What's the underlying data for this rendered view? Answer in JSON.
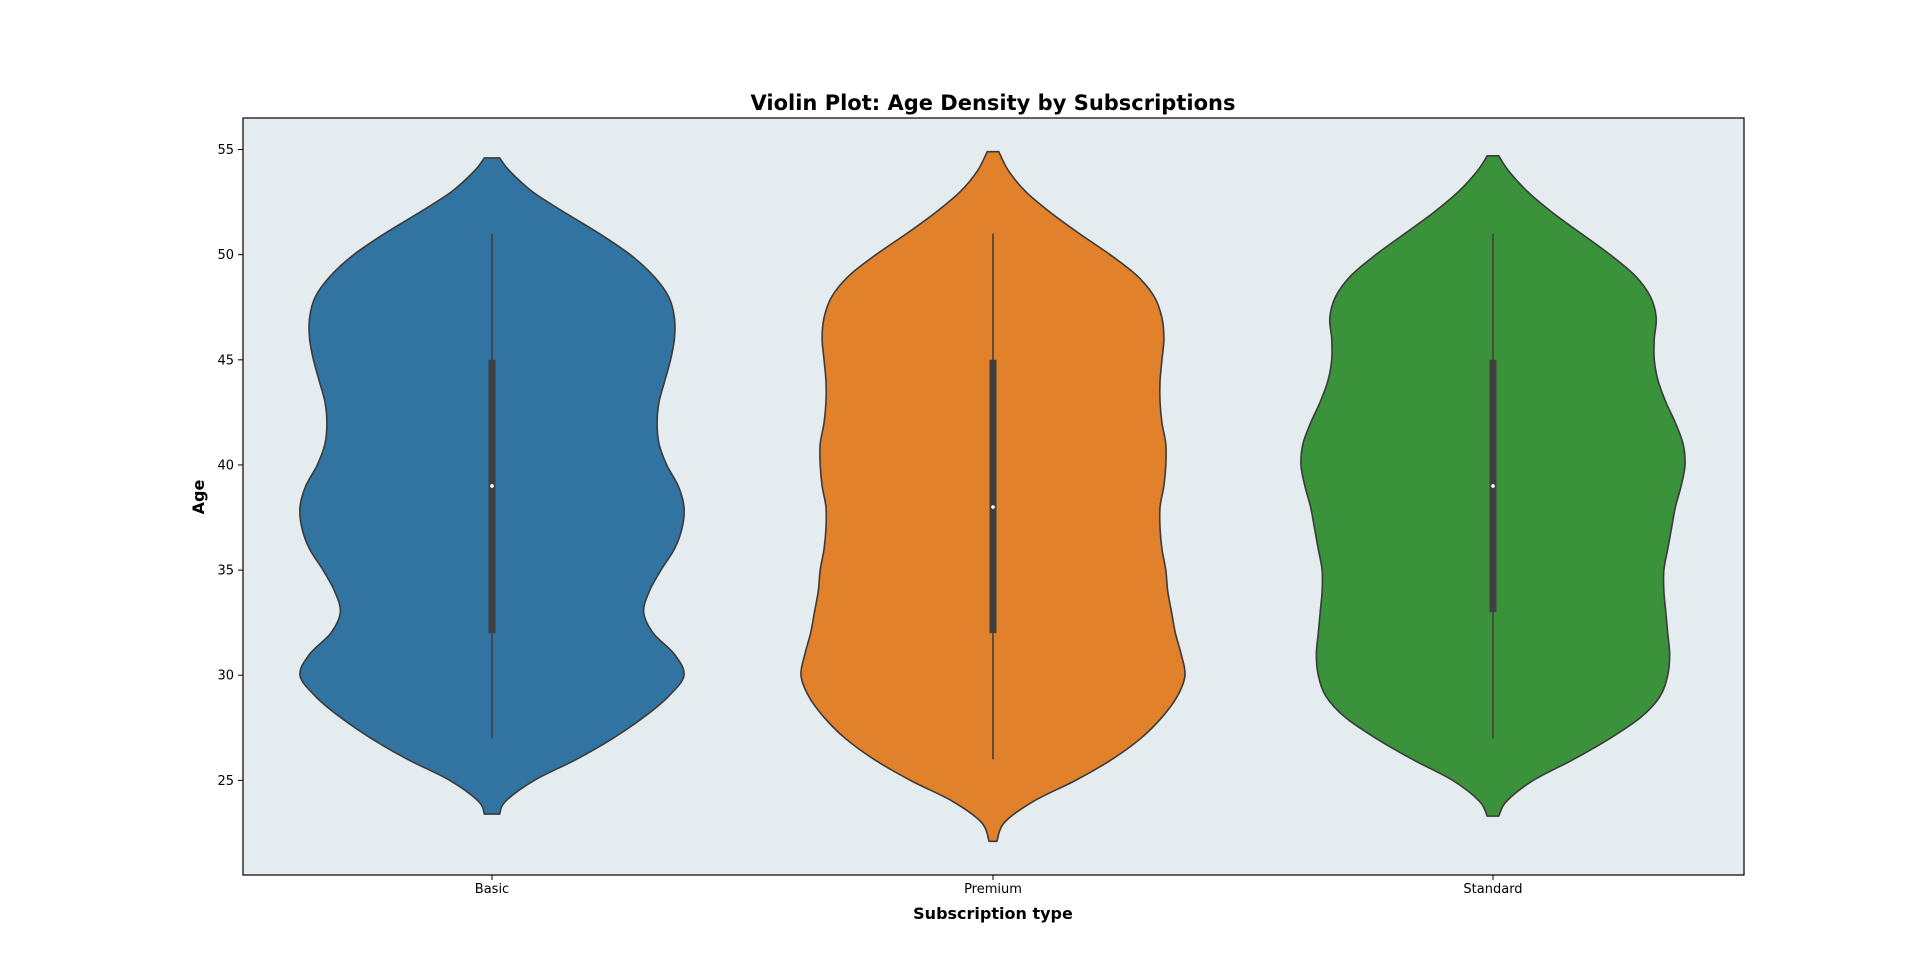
{
  "chart_data": {
    "type": "violin",
    "title": "Violin Plot: Age Density by Subscriptions",
    "xlabel": "Subscription type",
    "ylabel": "Age",
    "categories": [
      "Basic",
      "Premium",
      "Standard"
    ],
    "ylim": [
      20.5,
      56.5
    ],
    "yticks": [
      25,
      30,
      35,
      40,
      45,
      50,
      55
    ],
    "background": "#e5ecf0",
    "grid": false,
    "legend": "none",
    "series": [
      {
        "category": "Basic",
        "color": "#3274a1",
        "min": 27,
        "q1": 32,
        "median": 39,
        "q3": 45,
        "max": 51,
        "extent": [
          23.4,
          54.6
        ],
        "density": [
          [
            23.4,
            0.04
          ],
          [
            24.0,
            0.07
          ],
          [
            25.0,
            0.22
          ],
          [
            26.0,
            0.44
          ],
          [
            27.0,
            0.63
          ],
          [
            28.0,
            0.79
          ],
          [
            29.0,
            0.92
          ],
          [
            30.0,
            1.0
          ],
          [
            31.0,
            0.95
          ],
          [
            32.0,
            0.84
          ],
          [
            33.0,
            0.79
          ],
          [
            34.0,
            0.82
          ],
          [
            35.0,
            0.88
          ],
          [
            36.0,
            0.95
          ],
          [
            37.0,
            0.99
          ],
          [
            38.0,
            1.0
          ],
          [
            39.0,
            0.97
          ],
          [
            40.0,
            0.91
          ],
          [
            41.0,
            0.87
          ],
          [
            42.0,
            0.86
          ],
          [
            43.0,
            0.87
          ],
          [
            44.0,
            0.9
          ],
          [
            45.0,
            0.93
          ],
          [
            46.0,
            0.95
          ],
          [
            47.0,
            0.95
          ],
          [
            48.0,
            0.92
          ],
          [
            49.0,
            0.84
          ],
          [
            50.0,
            0.72
          ],
          [
            51.0,
            0.56
          ],
          [
            52.0,
            0.38
          ],
          [
            53.0,
            0.21
          ],
          [
            54.0,
            0.09
          ],
          [
            54.6,
            0.04
          ]
        ]
      },
      {
        "category": "Premium",
        "color": "#e1812c",
        "min": 26,
        "q1": 32,
        "median": 38,
        "q3": 45,
        "max": 51,
        "extent": [
          22.1,
          54.9
        ],
        "density": [
          [
            22.1,
            0.02
          ],
          [
            23.0,
            0.06
          ],
          [
            24.0,
            0.21
          ],
          [
            25.0,
            0.43
          ],
          [
            26.0,
            0.62
          ],
          [
            27.0,
            0.77
          ],
          [
            28.0,
            0.88
          ],
          [
            29.0,
            0.96
          ],
          [
            30.0,
            1.0
          ],
          [
            31.0,
            0.98
          ],
          [
            32.0,
            0.95
          ],
          [
            33.0,
            0.93
          ],
          [
            34.0,
            0.91
          ],
          [
            35.0,
            0.9
          ],
          [
            36.0,
            0.88
          ],
          [
            37.0,
            0.87
          ],
          [
            38.0,
            0.87
          ],
          [
            39.0,
            0.89
          ],
          [
            40.0,
            0.9
          ],
          [
            41.0,
            0.9
          ],
          [
            42.0,
            0.88
          ],
          [
            43.0,
            0.87
          ],
          [
            44.0,
            0.87
          ],
          [
            45.0,
            0.88
          ],
          [
            46.0,
            0.89
          ],
          [
            47.0,
            0.88
          ],
          [
            48.0,
            0.84
          ],
          [
            49.0,
            0.75
          ],
          [
            50.0,
            0.61
          ],
          [
            51.0,
            0.45
          ],
          [
            52.0,
            0.3
          ],
          [
            53.0,
            0.17
          ],
          [
            54.0,
            0.08
          ],
          [
            54.9,
            0.03
          ]
        ]
      },
      {
        "category": "Standard",
        "color": "#3a923a",
        "min": 27,
        "q1": 33,
        "median": 39,
        "q3": 45,
        "max": 51,
        "extent": [
          23.3,
          54.7
        ],
        "density": [
          [
            23.3,
            0.03
          ],
          [
            24.0,
            0.07
          ],
          [
            25.0,
            0.21
          ],
          [
            26.0,
            0.42
          ],
          [
            27.0,
            0.61
          ],
          [
            28.0,
            0.77
          ],
          [
            29.0,
            0.87
          ],
          [
            30.0,
            0.91
          ],
          [
            31.0,
            0.92
          ],
          [
            32.0,
            0.91
          ],
          [
            33.0,
            0.9
          ],
          [
            34.0,
            0.89
          ],
          [
            35.0,
            0.89
          ],
          [
            36.0,
            0.91
          ],
          [
            37.0,
            0.93
          ],
          [
            38.0,
            0.95
          ],
          [
            39.0,
            0.98
          ],
          [
            40.0,
            1.0
          ],
          [
            41.0,
            0.99
          ],
          [
            42.0,
            0.95
          ],
          [
            43.0,
            0.9
          ],
          [
            44.0,
            0.86
          ],
          [
            45.0,
            0.84
          ],
          [
            46.0,
            0.84
          ],
          [
            47.0,
            0.85
          ],
          [
            48.0,
            0.82
          ],
          [
            49.0,
            0.74
          ],
          [
            50.0,
            0.61
          ],
          [
            51.0,
            0.46
          ],
          [
            52.0,
            0.31
          ],
          [
            53.0,
            0.18
          ],
          [
            54.0,
            0.08
          ],
          [
            54.7,
            0.03
          ]
        ]
      }
    ]
  }
}
